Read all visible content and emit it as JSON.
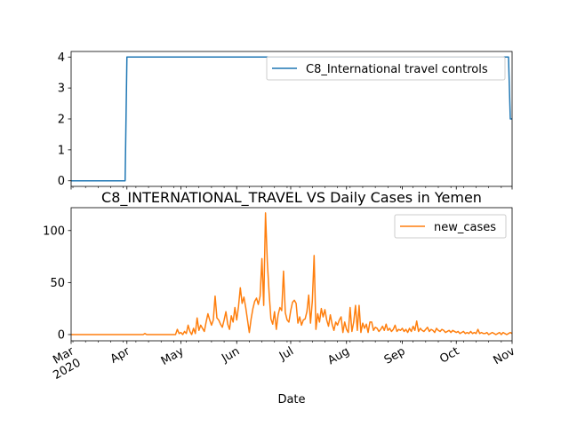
{
  "chart_data": [
    {
      "type": "line",
      "title": "",
      "xlabel": "",
      "ylabel": "",
      "xlim": [
        "2020-03-01",
        "2020-11-01"
      ],
      "ylim": [
        -0.18,
        4.18
      ],
      "yticks": [
        0,
        1,
        2,
        3,
        4
      ],
      "x_tick_labels_shown": false,
      "legend": "top-right",
      "series": [
        {
          "name": "C8_International travel controls",
          "color": "#1f77b4",
          "points": [
            [
              "2020-03-01",
              0
            ],
            [
              "2020-03-31",
              0
            ],
            [
              "2020-04-01",
              4
            ],
            [
              "2020-10-30",
              4
            ],
            [
              "2020-10-31",
              2
            ],
            [
              "2020-11-01",
              2
            ]
          ]
        }
      ]
    },
    {
      "type": "line",
      "title": "C8_INTERNATIONAL_TRAVEL VS Daily Cases in Yemen",
      "xlabel": "Date",
      "ylabel": "",
      "xlim": [
        "2020-03-01",
        "2020-11-01"
      ],
      "ylim": [
        -6,
        122
      ],
      "yticks": [
        0,
        50,
        100
      ],
      "x_tick_labels": [
        {
          "date": "2020-03-01",
          "label": "Mar\n2020"
        },
        {
          "date": "2020-04-01",
          "label": "Apr"
        },
        {
          "date": "2020-05-01",
          "label": "May"
        },
        {
          "date": "2020-06-01",
          "label": "Jun"
        },
        {
          "date": "2020-07-01",
          "label": "Jul"
        },
        {
          "date": "2020-08-01",
          "label": "Aug"
        },
        {
          "date": "2020-09-01",
          "label": "Sep"
        },
        {
          "date": "2020-10-01",
          "label": "Oct"
        },
        {
          "date": "2020-11-01",
          "label": "Nov"
        }
      ],
      "legend": "top-right",
      "series": [
        {
          "name": "new_cases",
          "color": "#ff7f0e",
          "points": [
            [
              "2020-03-01",
              0
            ],
            [
              "2020-04-10",
              0
            ],
            [
              "2020-04-11",
              1
            ],
            [
              "2020-04-12",
              0
            ],
            [
              "2020-04-28",
              0
            ],
            [
              "2020-04-29",
              5
            ],
            [
              "2020-04-30",
              1
            ],
            [
              "2020-05-01",
              2
            ],
            [
              "2020-05-02",
              0
            ],
            [
              "2020-05-03",
              3
            ],
            [
              "2020-05-04",
              1
            ],
            [
              "2020-05-05",
              9
            ],
            [
              "2020-05-06",
              3
            ],
            [
              "2020-05-07",
              0
            ],
            [
              "2020-05-08",
              6
            ],
            [
              "2020-05-09",
              1
            ],
            [
              "2020-05-10",
              16
            ],
            [
              "2020-05-11",
              4
            ],
            [
              "2020-05-12",
              9
            ],
            [
              "2020-05-13",
              6
            ],
            [
              "2020-05-14",
              3
            ],
            [
              "2020-05-15",
              12
            ],
            [
              "2020-05-16",
              20
            ],
            [
              "2020-05-17",
              14
            ],
            [
              "2020-05-18",
              9
            ],
            [
              "2020-05-19",
              14
            ],
            [
              "2020-05-20",
              37
            ],
            [
              "2020-05-21",
              16
            ],
            [
              "2020-05-22",
              14
            ],
            [
              "2020-05-23",
              10
            ],
            [
              "2020-05-24",
              7
            ],
            [
              "2020-05-25",
              14
            ],
            [
              "2020-05-26",
              22
            ],
            [
              "2020-05-27",
              10
            ],
            [
              "2020-05-28",
              5
            ],
            [
              "2020-05-29",
              18
            ],
            [
              "2020-05-30",
              12
            ],
            [
              "2020-05-31",
              26
            ],
            [
              "2020-06-01",
              14
            ],
            [
              "2020-06-02",
              27
            ],
            [
              "2020-06-03",
              45
            ],
            [
              "2020-06-04",
              30
            ],
            [
              "2020-06-05",
              36
            ],
            [
              "2020-06-06",
              26
            ],
            [
              "2020-06-07",
              14
            ],
            [
              "2020-06-08",
              2
            ],
            [
              "2020-06-09",
              15
            ],
            [
              "2020-06-10",
              25
            ],
            [
              "2020-06-11",
              32
            ],
            [
              "2020-06-12",
              35
            ],
            [
              "2020-06-13",
              29
            ],
            [
              "2020-06-14",
              37
            ],
            [
              "2020-06-15",
              73
            ],
            [
              "2020-06-16",
              28
            ],
            [
              "2020-06-17",
              117
            ],
            [
              "2020-06-18",
              70
            ],
            [
              "2020-06-19",
              40
            ],
            [
              "2020-06-20",
              15
            ],
            [
              "2020-06-21",
              10
            ],
            [
              "2020-06-22",
              22
            ],
            [
              "2020-06-23",
              5
            ],
            [
              "2020-06-24",
              19
            ],
            [
              "2020-06-25",
              26
            ],
            [
              "2020-06-26",
              23
            ],
            [
              "2020-06-27",
              61
            ],
            [
              "2020-06-28",
              21
            ],
            [
              "2020-06-29",
              14
            ],
            [
              "2020-06-30",
              12
            ],
            [
              "2020-07-01",
              23
            ],
            [
              "2020-07-02",
              31
            ],
            [
              "2020-07-03",
              33
            ],
            [
              "2020-07-04",
              30
            ],
            [
              "2020-07-05",
              11
            ],
            [
              "2020-07-06",
              17
            ],
            [
              "2020-07-07",
              9
            ],
            [
              "2020-07-08",
              14
            ],
            [
              "2020-07-09",
              15
            ],
            [
              "2020-07-10",
              22
            ],
            [
              "2020-07-11",
              38
            ],
            [
              "2020-07-12",
              11
            ],
            [
              "2020-07-13",
              32
            ],
            [
              "2020-07-14",
              76
            ],
            [
              "2020-07-15",
              5
            ],
            [
              "2020-07-16",
              20
            ],
            [
              "2020-07-17",
              12
            ],
            [
              "2020-07-18",
              25
            ],
            [
              "2020-07-19",
              17
            ],
            [
              "2020-07-20",
              24
            ],
            [
              "2020-07-21",
              14
            ],
            [
              "2020-07-22",
              8
            ],
            [
              "2020-07-23",
              19
            ],
            [
              "2020-07-24",
              10
            ],
            [
              "2020-07-25",
              4
            ],
            [
              "2020-07-26",
              12
            ],
            [
              "2020-07-27",
              9
            ],
            [
              "2020-07-28",
              14
            ],
            [
              "2020-07-29",
              17
            ],
            [
              "2020-07-30",
              2
            ],
            [
              "2020-07-31",
              12
            ],
            [
              "2020-08-01",
              5
            ],
            [
              "2020-08-02",
              2
            ],
            [
              "2020-08-03",
              26
            ],
            [
              "2020-08-04",
              3
            ],
            [
              "2020-08-05",
              12
            ],
            [
              "2020-08-06",
              28
            ],
            [
              "2020-08-07",
              4
            ],
            [
              "2020-08-08",
              28
            ],
            [
              "2020-08-09",
              2
            ],
            [
              "2020-08-10",
              11
            ],
            [
              "2020-08-11",
              6
            ],
            [
              "2020-08-12",
              10
            ],
            [
              "2020-08-13",
              2
            ],
            [
              "2020-08-14",
              12
            ],
            [
              "2020-08-15",
              12
            ],
            [
              "2020-08-16",
              4
            ],
            [
              "2020-08-17",
              7
            ],
            [
              "2020-08-18",
              6
            ],
            [
              "2020-08-19",
              3
            ],
            [
              "2020-08-20",
              5
            ],
            [
              "2020-08-21",
              8
            ],
            [
              "2020-08-22",
              4
            ],
            [
              "2020-08-23",
              10
            ],
            [
              "2020-08-24",
              4
            ],
            [
              "2020-08-25",
              6
            ],
            [
              "2020-08-26",
              3
            ],
            [
              "2020-08-27",
              5
            ],
            [
              "2020-08-28",
              9
            ],
            [
              "2020-08-29",
              3
            ],
            [
              "2020-08-30",
              5
            ],
            [
              "2020-08-31",
              4
            ],
            [
              "2020-09-01",
              6
            ],
            [
              "2020-09-02",
              3
            ],
            [
              "2020-09-03",
              5
            ],
            [
              "2020-09-04",
              2
            ],
            [
              "2020-09-05",
              6
            ],
            [
              "2020-09-06",
              3
            ],
            [
              "2020-09-07",
              8
            ],
            [
              "2020-09-08",
              4
            ],
            [
              "2020-09-09",
              13
            ],
            [
              "2020-09-10",
              3
            ],
            [
              "2020-09-11",
              6
            ],
            [
              "2020-09-12",
              4
            ],
            [
              "2020-09-13",
              3
            ],
            [
              "2020-09-14",
              5
            ],
            [
              "2020-09-15",
              7
            ],
            [
              "2020-09-16",
              3
            ],
            [
              "2020-09-17",
              5
            ],
            [
              "2020-09-18",
              4
            ],
            [
              "2020-09-19",
              2
            ],
            [
              "2020-09-20",
              6
            ],
            [
              "2020-09-21",
              4
            ],
            [
              "2020-09-22",
              3
            ],
            [
              "2020-09-23",
              5
            ],
            [
              "2020-09-24",
              4
            ],
            [
              "2020-09-25",
              2
            ],
            [
              "2020-09-26",
              3
            ],
            [
              "2020-09-27",
              4
            ],
            [
              "2020-09-28",
              2
            ],
            [
              "2020-09-29",
              4
            ],
            [
              "2020-09-30",
              3
            ],
            [
              "2020-10-01",
              2
            ],
            [
              "2020-10-02",
              3
            ],
            [
              "2020-10-03",
              1
            ],
            [
              "2020-10-04",
              2
            ],
            [
              "2020-10-05",
              3
            ],
            [
              "2020-10-06",
              1
            ],
            [
              "2020-10-07",
              2
            ],
            [
              "2020-10-08",
              1
            ],
            [
              "2020-10-09",
              3
            ],
            [
              "2020-10-10",
              1
            ],
            [
              "2020-10-11",
              2
            ],
            [
              "2020-10-12",
              1
            ],
            [
              "2020-10-13",
              5
            ],
            [
              "2020-10-14",
              1
            ],
            [
              "2020-10-15",
              2
            ],
            [
              "2020-10-16",
              1
            ],
            [
              "2020-10-17",
              1
            ],
            [
              "2020-10-18",
              2
            ],
            [
              "2020-10-19",
              0
            ],
            [
              "2020-10-20",
              1
            ],
            [
              "2020-10-21",
              2
            ],
            [
              "2020-10-22",
              1
            ],
            [
              "2020-10-23",
              0
            ],
            [
              "2020-10-24",
              1
            ],
            [
              "2020-10-25",
              2
            ],
            [
              "2020-10-26",
              0
            ],
            [
              "2020-10-27",
              2
            ],
            [
              "2020-10-28",
              1
            ],
            [
              "2020-10-29",
              0
            ],
            [
              "2020-10-30",
              1
            ],
            [
              "2020-10-31",
              2
            ],
            [
              "2020-11-01",
              1
            ]
          ]
        }
      ]
    }
  ]
}
